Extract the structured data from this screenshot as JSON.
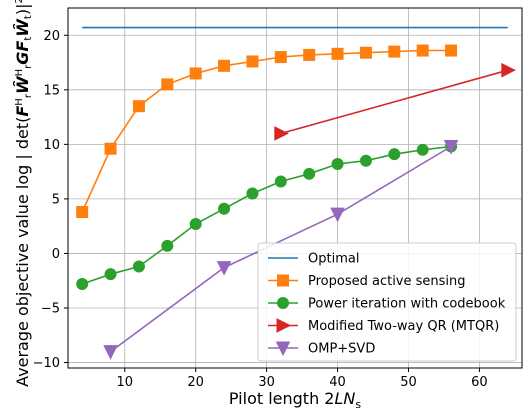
{
  "chart_data": {
    "type": "line",
    "xlabel": "Pilot length 2LNs",
    "ylabel": "Average objective value log | det(FrHŴrHGFtŴt) |²",
    "xlim": [
      2,
      66
    ],
    "ylim": [
      -10.5,
      22.5
    ],
    "xticks": [
      10,
      20,
      30,
      40,
      50,
      60
    ],
    "yticks": [
      -10,
      -5,
      0,
      5,
      10,
      15,
      20
    ],
    "grid": true,
    "legend_position": "lower-right",
    "series": [
      {
        "name": "Optimal",
        "color": "#1f77b4",
        "marker": "none",
        "x": [
          4,
          64
        ],
        "y": [
          20.7,
          20.7
        ]
      },
      {
        "name": "Proposed active sensing",
        "color": "#ff7f0e",
        "marker": "square",
        "x": [
          4,
          8,
          12,
          16,
          20,
          24,
          28,
          32,
          36,
          40,
          44,
          48,
          52,
          56
        ],
        "y": [
          3.8,
          9.6,
          13.5,
          15.5,
          16.5,
          17.2,
          17.6,
          18.0,
          18.2,
          18.3,
          18.4,
          18.5,
          18.6,
          18.6
        ]
      },
      {
        "name": "Power iteration with codebook",
        "color": "#2ca02c",
        "marker": "circle",
        "x": [
          4,
          8,
          12,
          16,
          20,
          24,
          28,
          32,
          36,
          40,
          44,
          48,
          52,
          56
        ],
        "y": [
          -2.8,
          -1.9,
          -1.2,
          0.7,
          2.7,
          4.1,
          5.5,
          6.6,
          7.3,
          8.2,
          8.5,
          9.1,
          9.5,
          9.8
        ]
      },
      {
        "name": "Modified Two-way QR (MTQR)",
        "color": "#d62728",
        "marker": "triangle-right",
        "x": [
          32,
          64
        ],
        "y": [
          11.0,
          16.8
        ]
      },
      {
        "name": "OMP+SVD",
        "color": "#9467bd",
        "marker": "triangle-down",
        "x": [
          8,
          24,
          40,
          56
        ],
        "y": [
          -9.0,
          -1.3,
          3.6,
          9.8
        ]
      }
    ]
  }
}
